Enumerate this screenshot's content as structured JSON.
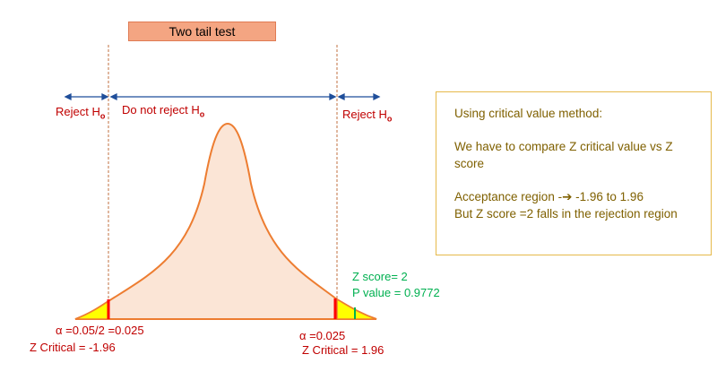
{
  "title": "Two tail test",
  "regions": {
    "reject_left": "Reject H",
    "do_not_reject": "Do not reject H",
    "reject_right": "Reject H",
    "hyp_sub": "o"
  },
  "left_tail": {
    "alpha": "α =0.05/2 =0.025",
    "z_critical": "Z Critical = -1.96"
  },
  "right_tail": {
    "alpha": "α =0.025",
    "z_critical": "Z Critical = 1.96"
  },
  "z_score": {
    "z": "Z score= 2",
    "p": "P value = 0.9772"
  },
  "info": {
    "line1": "Using critical value method:",
    "line2": "We have to compare Z critical value vs Z score",
    "line3_pre": "Acceptance region -",
    "line3_arrow": "➔",
    "line3_post": " -1.96 to 1.96",
    "line4": "But Z score =2 falls in the rejection region"
  },
  "colors": {
    "curve": "#ed7d31",
    "curve_fill": "#fbe5d6",
    "tail_fill": "#ffff00",
    "critical_line": "#ff0000",
    "zscore_line": "#00b050",
    "arrow": "#1f4e9a",
    "reject_text": "#c00000"
  }
}
